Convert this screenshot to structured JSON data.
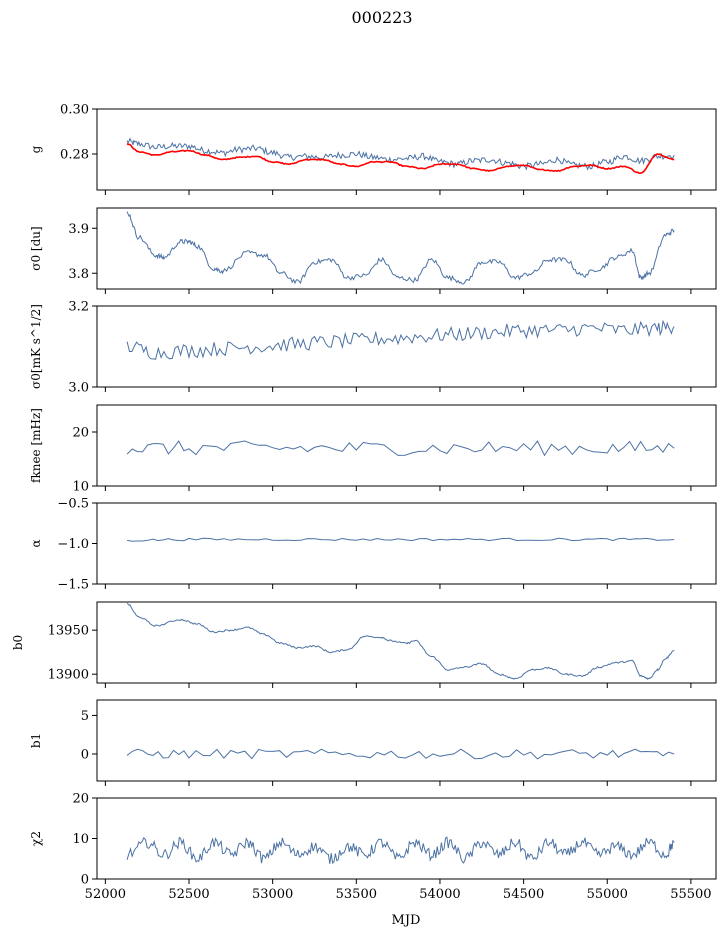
{
  "figure": {
    "title": "000223",
    "xlabel": "MJD"
  },
  "chart_data": {
    "type": "line",
    "title": "000223",
    "xlabel": "MJD",
    "xlim": [
      51950,
      55650
    ],
    "x_ticks": [
      52000,
      52500,
      53000,
      53500,
      54000,
      54500,
      55000,
      55500
    ],
    "x_tick_labels": [
      "52000",
      "52500",
      "53000",
      "53500",
      "54000",
      "54500",
      "55000",
      "55500"
    ],
    "line_color": "#4c72a4",
    "model_color": "#ff0000",
    "panels": [
      {
        "id": "g",
        "ylabel": "g",
        "ylim": [
          0.264,
          0.3
        ],
        "y_ticks": [
          0.28,
          0.3
        ],
        "y_tick_labels": [
          "0.28",
          "0.30"
        ],
        "series": [
          {
            "x": [
              52130,
              52200,
              52300,
              52400,
              52500,
              52600,
              52700,
              52800,
              52900,
              53000,
              53100,
              53200,
              53300,
              53400,
              53500,
              53600,
              53700,
              53800,
              53900,
              54000,
              54100,
              54200,
              54300,
              54400,
              54500,
              54600,
              54700,
              54800,
              54900,
              55000,
              55100,
              55200,
              55300,
              55400
            ],
            "y": [
              0.2855,
              0.2845,
              0.283,
              0.2835,
              0.2835,
              0.2815,
              0.2805,
              0.282,
              0.2825,
              0.2805,
              0.2785,
              0.279,
              0.2785,
              0.2795,
              0.28,
              0.2785,
              0.2775,
              0.278,
              0.279,
              0.2765,
              0.2755,
              0.277,
              0.2775,
              0.276,
              0.2745,
              0.2755,
              0.2775,
              0.275,
              0.2745,
              0.2765,
              0.279,
              0.277,
              0.279,
              0.2795
            ]
          },
          {
            "x": [
              52130,
              52200,
              52300,
              52400,
              52500,
              52600,
              52700,
              52800,
              52900,
              53000,
              53100,
              53200,
              53300,
              53400,
              53500,
              53600,
              53700,
              53800,
              53900,
              54000,
              54100,
              54200,
              54300,
              54400,
              54500,
              54600,
              54700,
              54800,
              54900,
              55000,
              55100,
              55200,
              55300,
              55400
            ],
            "y": [
              0.2845,
              0.281,
              0.2795,
              0.281,
              0.2815,
              0.2795,
              0.2775,
              0.2785,
              0.279,
              0.2765,
              0.2755,
              0.2775,
              0.2775,
              0.2755,
              0.2745,
              0.2765,
              0.2765,
              0.2745,
              0.2735,
              0.2755,
              0.2755,
              0.2735,
              0.2725,
              0.2745,
              0.275,
              0.273,
              0.2725,
              0.2745,
              0.275,
              0.2735,
              0.2745,
              0.2715,
              0.28,
              0.2775
            ]
          }
        ]
      },
      {
        "id": "sigma0_du",
        "ylabel": "σ0 [du]",
        "ylim": [
          3.765,
          3.945
        ],
        "y_ticks": [
          3.8,
          3.9
        ],
        "y_tick_labels": [
          "3.8",
          "3.9"
        ],
        "series": [
          {
            "x": [
              52130,
              52200,
              52300,
              52350,
              52450,
              52500,
              52550,
              52650,
              52700,
              52850,
              52950,
              53050,
              53150,
              53250,
              53350,
              53450,
              53550,
              53650,
              53750,
              53850,
              53950,
              54050,
              54150,
              54250,
              54350,
              54450,
              54550,
              54650,
              54750,
              54850,
              54950,
              55050,
              55150,
              55200,
              55250,
              55350,
              55400
            ],
            "y": [
              3.935,
              3.88,
              3.84,
              3.835,
              3.87,
              3.87,
              3.86,
              3.81,
              3.805,
              3.845,
              3.84,
              3.8,
              3.78,
              3.825,
              3.83,
              3.79,
              3.795,
              3.83,
              3.79,
              3.785,
              3.83,
              3.79,
              3.78,
              3.825,
              3.825,
              3.79,
              3.8,
              3.83,
              3.83,
              3.795,
              3.81,
              3.835,
              3.85,
              3.79,
              3.8,
              3.885,
              3.895
            ]
          }
        ]
      },
      {
        "id": "sigma0_mk",
        "ylabel": "σ0[mK s^1/2]",
        "ylim": [
          3.0,
          3.2
        ],
        "y_ticks": [
          3.0,
          3.2
        ],
        "y_tick_labels": [
          "3.0",
          "3.2"
        ],
        "series": [
          {
            "x": [
              52130,
              52300,
              52500,
              52700,
              52900,
              53100,
              53300,
              53500,
              53700,
              53900,
              54100,
              54300,
              54500,
              54700,
              54900,
              55100,
              55300,
              55400
            ],
            "y": [
              3.1,
              3.085,
              3.09,
              3.095,
              3.1,
              3.105,
              3.11,
              3.115,
              3.12,
              3.125,
              3.13,
              3.135,
              3.14,
              3.14,
              3.145,
              3.14,
              3.145,
              3.15
            ]
          }
        ]
      },
      {
        "id": "fknee",
        "ylabel": "fknee [mHz]",
        "ylim": [
          10,
          25
        ],
        "y_ticks": [
          10,
          20
        ],
        "y_tick_labels": [
          "10",
          "20"
        ],
        "series": [
          {
            "x": [
              52130,
              52500,
              53000,
              53500,
              54000,
              54500,
              55000,
              55400
            ],
            "y": [
              17,
              17,
              17,
              17,
              17,
              17,
              17,
              17
            ]
          }
        ]
      },
      {
        "id": "alpha",
        "ylabel": "α",
        "ylim": [
          -1.5,
          -0.5
        ],
        "y_ticks": [
          -1.5,
          -1.0,
          -0.5
        ],
        "y_tick_labels": [
          "−1.5",
          "−1.0",
          "−0.5"
        ],
        "series": [
          {
            "x": [
              52130,
              52500,
              53000,
              53500,
              54000,
              54500,
              55000,
              55400
            ],
            "y": [
              -0.96,
              -0.95,
              -0.95,
              -0.95,
              -0.95,
              -0.95,
              -0.95,
              -0.95
            ]
          }
        ]
      },
      {
        "id": "b0",
        "ylabel": "b0",
        "ylim": [
          13890,
          13982
        ],
        "y_ticks": [
          13900,
          13950
        ],
        "y_tick_labels": [
          "13900",
          "13950"
        ],
        "series": [
          {
            "x": [
              52130,
              52200,
              52300,
              52450,
              52550,
              52650,
              52750,
              52850,
              52950,
              53050,
              53150,
              53250,
              53350,
              53450,
              53550,
              53650,
              53700,
              53800,
              53850,
              53950,
              54050,
              54150,
              54250,
              54350,
              54450,
              54550,
              54650,
              54750,
              54850,
              54950,
              55050,
              55150,
              55200,
              55250,
              55300,
              55350,
              55400
            ],
            "y": [
              13980,
              13965,
              13955,
              13962,
              13957,
              13948,
              13950,
              13953,
              13945,
              13935,
              13930,
              13932,
              13925,
              13928,
              13943,
              13942,
              13938,
              13935,
              13938,
              13920,
              13905,
              13908,
              13912,
              13900,
              13895,
              13905,
              13907,
              13900,
              13898,
              13908,
              13913,
              13915,
              13898,
              13895,
              13905,
              13918,
              13927
            ]
          }
        ]
      },
      {
        "id": "b1",
        "ylabel": "b1",
        "ylim": [
          -3.5,
          7
        ],
        "y_ticks": [
          0,
          5
        ],
        "y_tick_labels": [
          "0",
          "5"
        ],
        "series": [
          {
            "x": [
              52130,
              52500,
              53000,
              53500,
              54000,
              54500,
              55000,
              55400
            ],
            "y": [
              0,
              0,
              0,
              0,
              0,
              0,
              0,
              0
            ]
          }
        ]
      },
      {
        "id": "chi2",
        "ylabel": "χ2",
        "ylim": [
          0,
          20
        ],
        "y_ticks": [
          0,
          10,
          20
        ],
        "y_tick_labels": [
          "0",
          "10",
          "20"
        ],
        "series": [
          {
            "x": [
              52130,
              52250,
              52350,
              52450,
              52550,
              52650,
              52750,
              52850,
              52950,
              53050,
              53150,
              53250,
              53350,
              53450,
              53550,
              53650,
              53750,
              53850,
              53950,
              54050,
              54150,
              54250,
              54350,
              54450,
              54550,
              54650,
              54750,
              54850,
              54950,
              55050,
              55150,
              55250,
              55350,
              55400
            ],
            "y": [
              6,
              9,
              6,
              9,
              5,
              9,
              6,
              9,
              5,
              9,
              6,
              8,
              5,
              8,
              6,
              9,
              5,
              9,
              6,
              9,
              5,
              9,
              6,
              9,
              5,
              9,
              6,
              9,
              6,
              8,
              6,
              9,
              6,
              9
            ]
          }
        ]
      }
    ]
  }
}
